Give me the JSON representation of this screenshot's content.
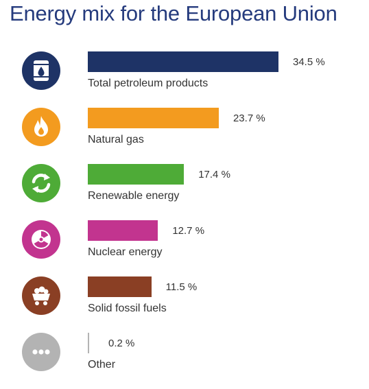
{
  "chart_data": {
    "type": "bar",
    "orientation": "horizontal",
    "title": "Energy mix for the European Union",
    "unit": "%",
    "categories": [
      "Total petroleum products",
      "Natural gas",
      "Renewable energy",
      "Nuclear energy",
      "Solid fossil fuels",
      "Other"
    ],
    "values": [
      34.5,
      23.7,
      17.4,
      12.7,
      11.5,
      0.2
    ],
    "value_labels": [
      "34.5 %",
      "23.7 %",
      "17.4 %",
      "12.7 %",
      "11.5 %",
      "0.2 %"
    ],
    "colors": [
      "#1e3366",
      "#f39b1f",
      "#4eab37",
      "#c2348f",
      "#8a3f24",
      "#b3b3b3"
    ],
    "icons": [
      "oil-barrel-icon",
      "flame-icon",
      "recycle-icon",
      "radiation-icon",
      "coal-cart-icon",
      "ellipsis-icon"
    ],
    "grid": false,
    "legend": "none"
  }
}
